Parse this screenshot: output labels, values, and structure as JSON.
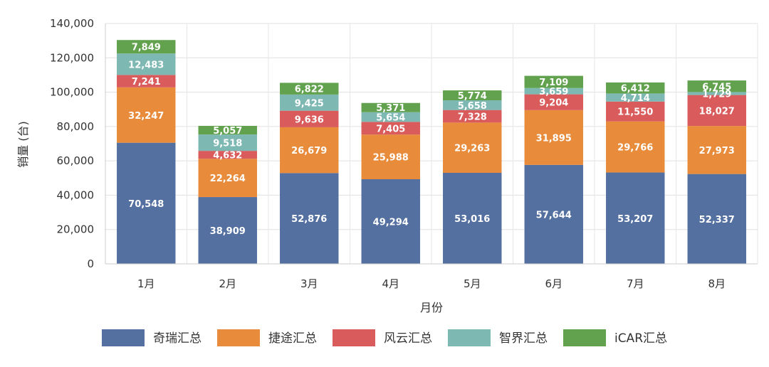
{
  "chart_data": {
    "type": "bar",
    "stacked": true,
    "categories": [
      "1月",
      "2月",
      "3月",
      "4月",
      "5月",
      "6月",
      "7月",
      "8月"
    ],
    "series": [
      {
        "name": "奇瑞汇总",
        "color": "#5470a0",
        "values": [
          70548,
          38909,
          52876,
          49294,
          53016,
          57644,
          53207,
          52337
        ]
      },
      {
        "name": "捷途汇总",
        "color": "#e88b3a",
        "values": [
          32247,
          22264,
          26679,
          25988,
          29263,
          31895,
          29766,
          27973
        ]
      },
      {
        "name": "风云汇总",
        "color": "#d95b5b",
        "values": [
          7241,
          4632,
          9636,
          7405,
          7328,
          9204,
          11550,
          18027
        ]
      },
      {
        "name": "智界汇总",
        "color": "#7eb8b3",
        "values": [
          12483,
          9518,
          9425,
          5654,
          5658,
          3659,
          4714,
          1729
        ]
      },
      {
        "name": "iCAR汇总",
        "color": "#62a24f",
        "values": [
          7849,
          5057,
          6822,
          5371,
          5774,
          7109,
          6412,
          6745
        ]
      }
    ],
    "xlabel": "月份",
    "ylabel": "销量 (台)",
    "ylim": [
      0,
      140000
    ],
    "yticks": [
      0,
      20000,
      40000,
      60000,
      80000,
      100000,
      120000,
      140000
    ],
    "ytick_labels": [
      "0",
      "20,000",
      "40,000",
      "60,000",
      "80,000",
      "100,000",
      "120,000",
      "140,000"
    ],
    "grid": true,
    "legend_position": "bottom"
  }
}
